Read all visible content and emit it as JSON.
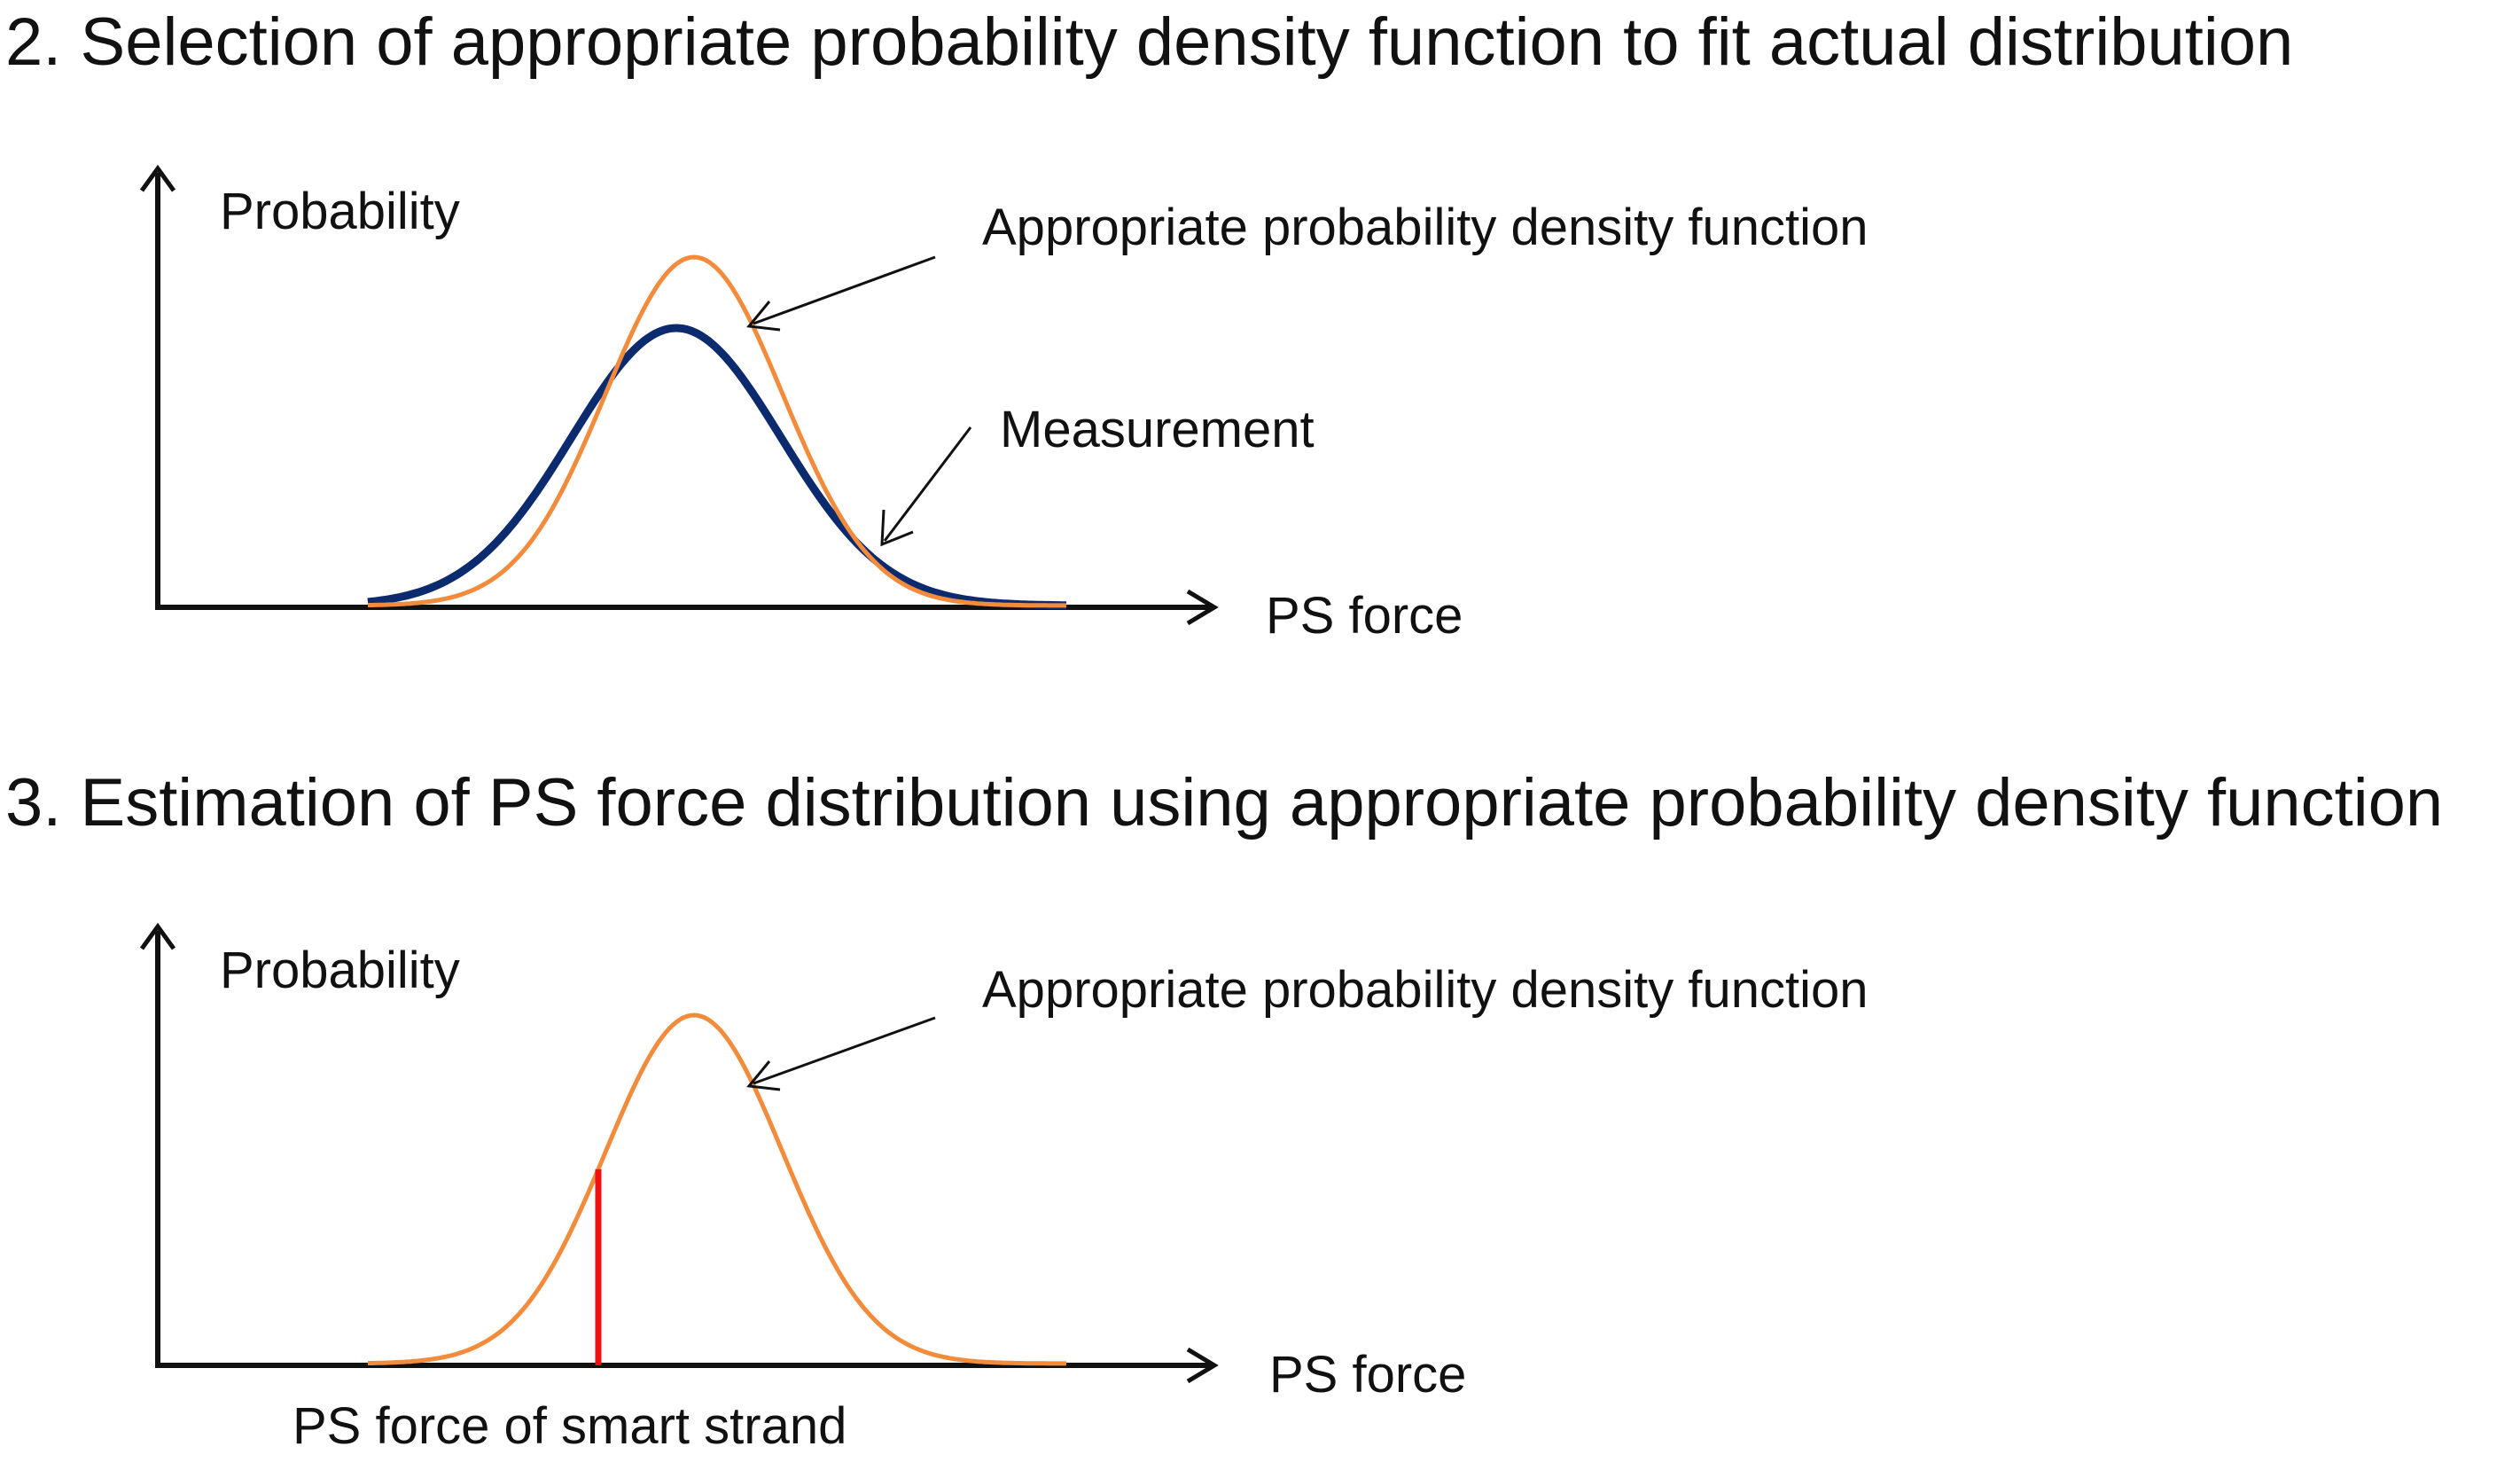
{
  "section2": {
    "heading": "2. Selection of appropriate probability density function to fit actual distribution",
    "y_axis_label": "Probability",
    "x_axis_label": "PS force",
    "annotations": {
      "pdf": "Appropriate probability density function",
      "measurement": "Measurement"
    }
  },
  "section3": {
    "heading": "3. Estimation of PS force distribution using appropriate probability density function",
    "y_axis_label": "Probability",
    "x_axis_label": "PS force",
    "annotations": {
      "pdf": "Appropriate probability density function",
      "marker": "PS force of smart strand"
    }
  },
  "colors": {
    "pdf_curve": "#f28c3c",
    "measurement_curve": "#0c2a6e",
    "marker": "#ee1111",
    "axes": "#111111"
  },
  "icons": [
    "arrow-up-icon",
    "arrow-right-icon",
    "arrow-pointer-icon"
  ]
}
